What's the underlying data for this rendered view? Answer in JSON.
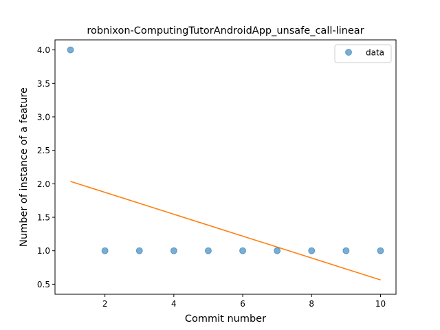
{
  "chart_data": {
    "type": "scatter",
    "title": "robnixon-ComputingTutorAndroidApp_unsafe_call-linear",
    "xlabel": "Commit number",
    "ylabel": "Number of instance of a feature",
    "xlim": [
      0.55,
      10.45
    ],
    "ylim": [
      0.35,
      4.15
    ],
    "xticks": [
      2,
      4,
      6,
      8,
      10
    ],
    "yticks": [
      0.5,
      1.0,
      1.5,
      2.0,
      2.5,
      3.0,
      3.5,
      4.0
    ],
    "xtick_labels": [
      "2",
      "4",
      "6",
      "8",
      "10"
    ],
    "ytick_labels": [
      "0.5",
      "1.0",
      "1.5",
      "2.0",
      "2.5",
      "3.0",
      "3.5",
      "4.0"
    ],
    "grid": false,
    "legend_position": "top-right",
    "series": [
      {
        "name": "data",
        "kind": "scatter",
        "color": "#1f77b4",
        "x": [
          1,
          2,
          3,
          4,
          5,
          6,
          7,
          8,
          9,
          10
        ],
        "y": [
          4,
          1,
          1,
          1,
          1,
          1,
          1,
          1,
          1,
          1
        ]
      },
      {
        "kind": "line",
        "color": "#ff7f0e",
        "x": [
          1,
          10
        ],
        "y": [
          2.036,
          0.564
        ]
      }
    ]
  }
}
